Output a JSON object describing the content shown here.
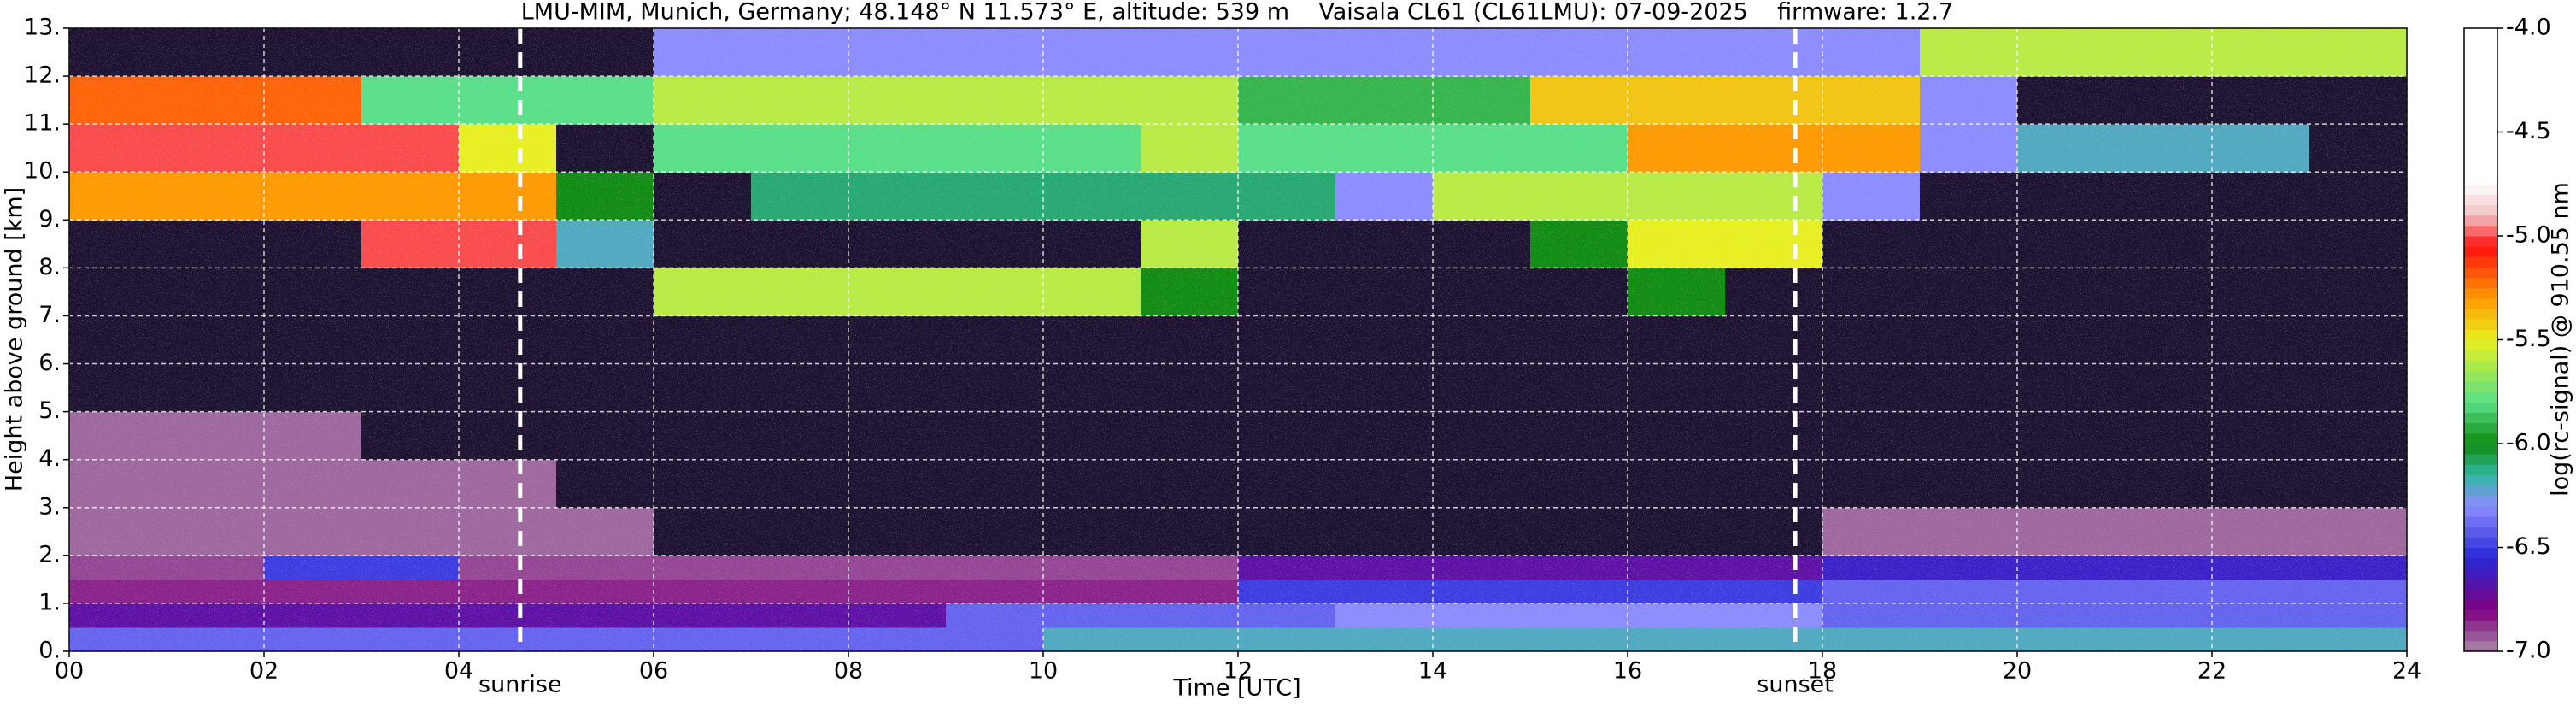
{
  "chart_data": {
    "type": "heatmap",
    "title": "LMU-MIM, Munich, Germany; 48.148° N 11.573° E, altitude: 539 m    Vaisala CL61 (CL61LMU): 07-09-2025    firmware: 1.2.7",
    "xlabel": "Time [UTC]",
    "ylabel": "Height above ground [km]",
    "colorbar_label": "log(rc-signal) @ 910.55 nm",
    "xlim": [
      0,
      24
    ],
    "ylim": [
      0,
      13
    ],
    "clim": [
      -7,
      -4
    ],
    "xticks": [
      {
        "value": 0,
        "label": "00"
      },
      {
        "value": 2,
        "label": "02"
      },
      {
        "value": 4,
        "label": "04"
      },
      {
        "value": 6,
        "label": "06"
      },
      {
        "value": 8,
        "label": "08"
      },
      10,
      12,
      14,
      16,
      18,
      20,
      22,
      24
    ],
    "yticks": [
      {
        "value": 0,
        "label": "0."
      },
      {
        "value": 1,
        "label": "1."
      },
      {
        "value": 2,
        "label": "2."
      },
      {
        "value": 3,
        "label": "3."
      },
      {
        "value": 4,
        "label": "4."
      },
      {
        "value": 5,
        "label": "5."
      },
      {
        "value": 6,
        "label": "6."
      },
      {
        "value": 7,
        "label": "7."
      },
      {
        "value": 8,
        "label": "8."
      },
      {
        "value": 9,
        "label": "9."
      },
      {
        "value": 10,
        "label": "10."
      },
      {
        "value": 11,
        "label": "11."
      },
      {
        "value": 12,
        "label": "12."
      },
      {
        "value": 13,
        "label": "13."
      }
    ],
    "cticks": [
      {
        "value": -4,
        "label": "-4.0"
      },
      -4.5,
      {
        "value": -5,
        "label": "-5.0"
      },
      -5.5,
      {
        "value": -6,
        "label": "-6.0"
      },
      -6.5,
      {
        "value": -7,
        "label": "-7.0"
      }
    ],
    "grid": true,
    "under_color": "#1c1230",
    "colormap": [
      [
        -7,
        "#a88aa8"
      ],
      [
        -6.8,
        "#800080"
      ],
      [
        -6.55,
        "#2828d8"
      ],
      [
        -6.3,
        "#8c8cff"
      ],
      [
        -6.15,
        "#30b8a0"
      ],
      [
        -6.0,
        "#108c10"
      ],
      [
        -5.8,
        "#58e088"
      ],
      [
        -5.5,
        "#e8f020"
      ],
      [
        -5.3,
        "#ff9a00"
      ],
      [
        -5.05,
        "#ff1010"
      ],
      [
        -4.9,
        "#f0c0c0"
      ],
      [
        -4.75,
        "#ffffff"
      ],
      [
        -4,
        "#ffffff"
      ]
    ],
    "annotations": [
      {
        "text": "sunrise",
        "x": 4.63
      },
      {
        "text": "sunset",
        "x": 17.72
      }
    ],
    "x": [
      0,
      1,
      2,
      3,
      4,
      5,
      6,
      7,
      8,
      9,
      10,
      11,
      12,
      13,
      14,
      15,
      16,
      17,
      18,
      19,
      20,
      21,
      22,
      23,
      24
    ],
    "y": [
      0,
      0.5,
      1,
      1.5,
      2,
      3,
      4,
      5,
      6,
      7,
      8,
      9,
      10,
      11,
      12,
      13
    ],
    "values": [
      [
        -6.4,
        -6.4,
        -6.4,
        -6.4,
        -6.4,
        -6.4,
        -6.4,
        -6.4,
        -6.4,
        -6.4,
        -6.2,
        -6.2,
        -6.2,
        -6.2,
        -6.2,
        -6.2,
        -6.2,
        -6.2,
        -6.2,
        -6.2,
        -6.2,
        -6.2,
        -6.2,
        -6.2
      ],
      [
        -6.7,
        -6.7,
        -6.7,
        -6.7,
        -6.7,
        -6.7,
        -6.7,
        -6.7,
        -6.7,
        -6.4,
        -6.4,
        -6.4,
        -6.4,
        -6.3,
        -6.3,
        -6.3,
        -6.3,
        -6.3,
        -6.4,
        -6.4,
        -6.4,
        -6.4,
        -6.4,
        -6.4
      ],
      [
        -6.85,
        -6.85,
        -6.85,
        -6.85,
        -6.85,
        -6.85,
        -6.85,
        -6.85,
        -6.85,
        -6.85,
        -6.85,
        -6.85,
        -6.5,
        -6.5,
        -6.5,
        -6.5,
        -6.5,
        -6.5,
        -6.4,
        -6.4,
        -6.4,
        -6.4,
        -6.4,
        -6.4
      ],
      [
        -6.9,
        -6.9,
        -6.5,
        -6.5,
        -6.9,
        -6.9,
        -6.9,
        -6.9,
        -6.9,
        -6.9,
        -6.9,
        -6.9,
        -6.7,
        -6.7,
        -6.7,
        -6.7,
        -6.7,
        -6.7,
        -6.6,
        -6.6,
        -6.6,
        -6.6,
        -6.6,
        -6.6
      ],
      [
        -6.95,
        -6.95,
        -6.95,
        -6.95,
        -6.95,
        -6.95,
        -7.2,
        -7.2,
        -7.2,
        -7.2,
        -7.2,
        -7.2,
        -7.2,
        -7.2,
        -7.2,
        -7.2,
        -7.2,
        -7.2,
        -6.95,
        -6.95,
        -6.95,
        -6.95,
        -6.95,
        -6.95
      ],
      [
        -6.95,
        -6.95,
        -6.95,
        -6.95,
        -6.95,
        -7.2,
        -7.2,
        -7.2,
        -7.2,
        -7.2,
        -7.2,
        -7.2,
        -7.2,
        -7.2,
        -7.2,
        -7.2,
        -7.2,
        -7.2,
        -7.2,
        -7.2,
        -7.2,
        -7.2,
        -7.2,
        -7.2
      ],
      [
        -6.95,
        -6.95,
        -6.95,
        -7.2,
        -7.2,
        -7.2,
        -7.2,
        -7.2,
        -7.2,
        -7.2,
        -7.2,
        -7.2,
        -7.2,
        -7.2,
        -7.2,
        -7.2,
        -7.2,
        -7.2,
        -7.2,
        -7.2,
        -7.2,
        -7.2,
        -7.2,
        -7.2
      ],
      [
        -7.2,
        -7.2,
        -7.2,
        -7.2,
        -7.2,
        -7.2,
        -7.2,
        -7.2,
        -7.2,
        -7.2,
        -7.2,
        -7.2,
        -7.2,
        -7.2,
        -7.2,
        -7.2,
        -7.2,
        -7.2,
        -7.2,
        -7.2,
        -7.2,
        -7.2,
        -7.2,
        -7.2
      ],
      [
        -7.2,
        -7.2,
        -7.2,
        -7.2,
        -7.2,
        -7.2,
        -7.2,
        -7.2,
        -7.2,
        -7.2,
        -7.2,
        -7.2,
        -7.2,
        -7.2,
        -7.2,
        -7.2,
        -7.2,
        -7.2,
        -7.2,
        -7.2,
        -7.2,
        -7.2,
        -7.2,
        -7.2
      ],
      [
        -7.2,
        -7.2,
        -7.2,
        -7.2,
        -7.2,
        -7.2,
        -5.6,
        -5.6,
        -5.6,
        -5.6,
        -5.6,
        -6.0,
        -7.2,
        -7.2,
        -7.2,
        -7.2,
        -6.0,
        -7.2,
        -7.2,
        -7.2,
        -7.2,
        -7.2,
        -7.2,
        -7.2
      ],
      [
        -7.2,
        -7.2,
        -7.2,
        -5.0,
        -5.0,
        -6.2,
        -7.2,
        -7.2,
        -7.2,
        -7.2,
        -7.2,
        -5.6,
        -7.2,
        -7.2,
        -7.2,
        -6.0,
        -5.5,
        -5.5,
        -7.2,
        -7.2,
        -7.2,
        -7.2,
        -7.2,
        -7.2
      ],
      [
        -5.3,
        -5.3,
        -5.3,
        -5.3,
        -5.3,
        -6.0,
        -7.2,
        -6.1,
        -6.1,
        -6.1,
        -6.1,
        -6.1,
        -6.1,
        -6.3,
        -5.6,
        -5.6,
        -5.6,
        -5.6,
        -6.3,
        -7.2,
        -7.2,
        -7.2,
        -7.2,
        -7.2
      ],
      [
        -5.0,
        -5.0,
        -5.0,
        -5.0,
        -5.5,
        -7.2,
        -5.8,
        -5.8,
        -5.8,
        -5.8,
        -5.8,
        -5.6,
        -5.8,
        -5.8,
        -5.8,
        -5.8,
        -5.3,
        -5.3,
        -5.3,
        -6.3,
        -6.2,
        -6.2,
        -6.2,
        -7.2
      ],
      [
        -5.2,
        -5.2,
        -5.2,
        -5.8,
        -5.8,
        -5.8,
        -5.6,
        -5.6,
        -5.6,
        -5.6,
        -5.6,
        -5.6,
        -5.9,
        -5.9,
        -5.9,
        -5.4,
        -5.4,
        -5.4,
        -5.4,
        -6.3,
        -7.2,
        -7.2,
        -7.2,
        -7.2
      ],
      [
        -7.2,
        -7.2,
        -7.2,
        -7.2,
        -7.2,
        -7.2,
        -6.3,
        -6.3,
        -6.3,
        -6.3,
        -6.3,
        -6.3,
        -6.3,
        -6.3,
        -6.3,
        -6.3,
        -6.3,
        -6.3,
        -6.3,
        -5.6,
        -5.6,
        -5.6,
        -5.6,
        -5.6
      ]
    ]
  }
}
